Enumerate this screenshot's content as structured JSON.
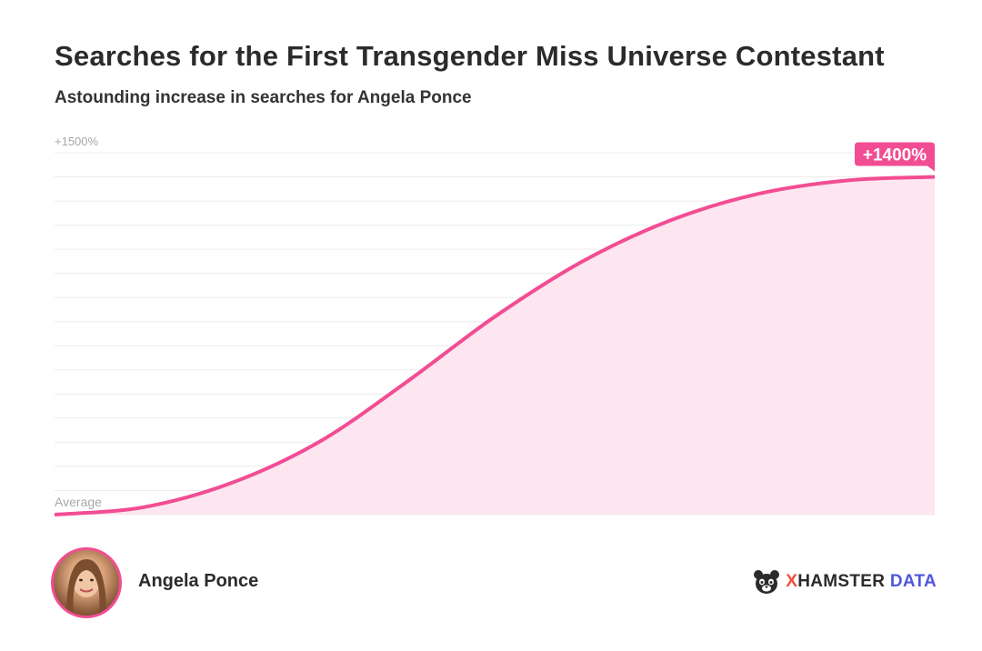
{
  "header": {
    "title": "Searches for the First Transgender Miss Universe Contestant",
    "subtitle": "Astounding increase in searches for Angela Ponce"
  },
  "colors": {
    "line": "#f24d93",
    "fill": "#fde6ef",
    "grid": "#ececec",
    "badge": "#f24d93",
    "brand_x": "#f24d3a",
    "brand_data": "#4f57d9"
  },
  "chart_data": {
    "type": "area",
    "y_top_label": "+1500%",
    "y_bottom_label": "Average",
    "ylim": [
      0,
      1500
    ],
    "xlim": [
      0,
      1
    ],
    "grid": true,
    "gridline_count": 15,
    "series": [
      {
        "x": [
          0,
          0.1,
          0.2,
          0.3,
          0.4,
          0.5,
          0.6,
          0.7,
          0.8,
          0.9,
          1.0
        ],
        "values": [
          0,
          30,
          130,
          300,
          550,
          820,
          1050,
          1220,
          1330,
          1385,
          1400
        ]
      }
    ],
    "end_label": "+1400%"
  },
  "footer": {
    "person_name": "Angela Ponce",
    "avatar_icon": "person-portrait-icon",
    "brand_logo_icon": "hamster-logo-icon",
    "brand_x": "X",
    "brand_hamster": "HAMSTER",
    "brand_data": "DATA"
  }
}
